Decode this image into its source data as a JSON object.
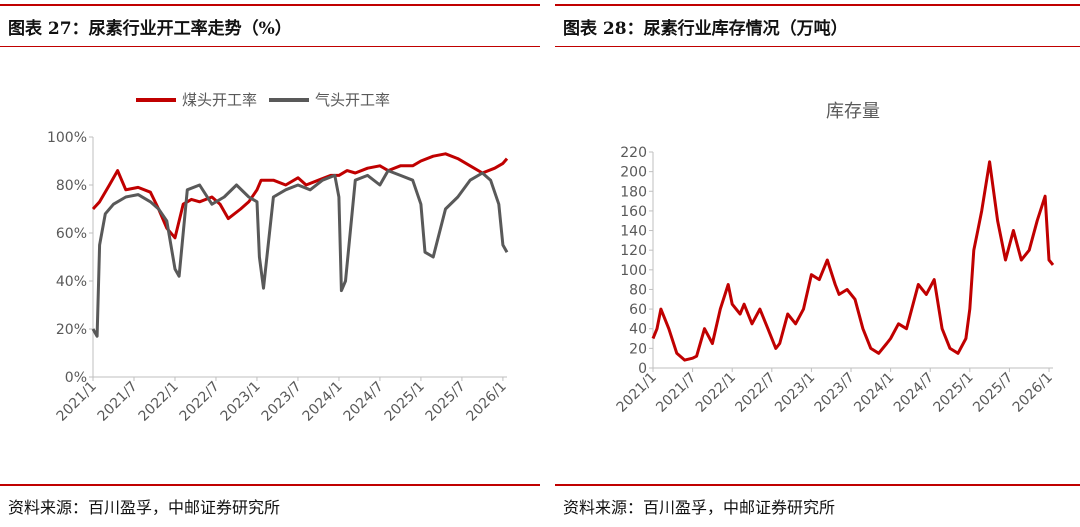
{
  "left": {
    "title": "图表 27：尿素行业开工率走势（%）",
    "source": "资料来源：百川盈孚，中邮证券研究所"
  },
  "right": {
    "title": "图表 28：尿素行业库存情况（万吨）",
    "source": "资料来源：百川盈孚，中邮证券研究所"
  },
  "colors": {
    "coal": "#c00000",
    "gas": "#595959",
    "rule": "#c00000"
  },
  "chart_data": [
    {
      "type": "line",
      "title": "",
      "x_tick_labels": [
        "2021/1",
        "2021/7",
        "2022/1",
        "2022/7",
        "2023/1",
        "2023/7",
        "2024/1",
        "2024/7",
        "2025/1",
        "2025/7",
        "2026/1"
      ],
      "y_tick_labels": [
        "0%",
        "20%",
        "40%",
        "60%",
        "80%",
        "100%"
      ],
      "ylim": [
        0,
        100
      ],
      "legend_position": "top",
      "series": [
        {
          "name": "煤头开工率",
          "color": "#c00000",
          "x": [
            2021.0,
            2021.08,
            2021.2,
            2021.3,
            2021.4,
            2021.55,
            2021.7,
            2021.8,
            2021.9,
            2022.0,
            2022.1,
            2022.2,
            2022.3,
            2022.45,
            2022.55,
            2022.65,
            2022.8,
            2022.9,
            2023.0,
            2023.05,
            2023.2,
            2023.35,
            2023.5,
            2023.6,
            2023.75,
            2023.9,
            2024.0,
            2024.1,
            2024.2,
            2024.35,
            2024.5,
            2024.6,
            2024.75,
            2024.9,
            2025.0,
            2025.15,
            2025.3,
            2025.45,
            2025.6,
            2025.75,
            2025.9,
            2026.0,
            2026.05
          ],
          "values": [
            70,
            73,
            80,
            86,
            78,
            79,
            77,
            70,
            62,
            58,
            72,
            74,
            73,
            75,
            72,
            66,
            70,
            73,
            78,
            82,
            82,
            80,
            83,
            80,
            82,
            84,
            84,
            86,
            85,
            87,
            88,
            86,
            88,
            88,
            90,
            92,
            93,
            91,
            88,
            85,
            87,
            89,
            91
          ]
        },
        {
          "name": "气头开工率",
          "color": "#595959",
          "x": [
            2021.0,
            2021.05,
            2021.08,
            2021.15,
            2021.25,
            2021.4,
            2021.55,
            2021.7,
            2021.8,
            2021.9,
            2022.0,
            2022.05,
            2022.15,
            2022.3,
            2022.45,
            2022.6,
            2022.75,
            2022.9,
            2023.0,
            2023.03,
            2023.08,
            2023.2,
            2023.35,
            2023.5,
            2023.65,
            2023.8,
            2023.95,
            2024.0,
            2024.03,
            2024.08,
            2024.2,
            2024.35,
            2024.5,
            2024.6,
            2024.75,
            2024.9,
            2025.0,
            2025.05,
            2025.15,
            2025.3,
            2025.45,
            2025.6,
            2025.75,
            2025.85,
            2025.95,
            2026.0,
            2026.05
          ],
          "values": [
            20,
            17,
            55,
            68,
            72,
            75,
            76,
            73,
            70,
            65,
            45,
            42,
            78,
            80,
            72,
            75,
            80,
            75,
            73,
            50,
            37,
            75,
            78,
            80,
            78,
            82,
            84,
            75,
            36,
            40,
            82,
            84,
            80,
            86,
            84,
            82,
            72,
            52,
            50,
            70,
            75,
            82,
            85,
            82,
            72,
            55,
            52
          ]
        }
      ]
    },
    {
      "type": "line",
      "title": "库存量",
      "x_tick_labels": [
        "2021/1",
        "2021/7",
        "2022/1",
        "2022/7",
        "2023/1",
        "2023/7",
        "2024/1",
        "2024/7",
        "2025/1",
        "2025/7",
        "2026/1"
      ],
      "y_tick_labels": [
        "0",
        "20",
        "40",
        "60",
        "80",
        "100",
        "120",
        "140",
        "160",
        "180",
        "200",
        "220"
      ],
      "ylim": [
        0,
        220
      ],
      "series": [
        {
          "name": "库存量",
          "color": "#c00000",
          "x": [
            2021.0,
            2021.05,
            2021.1,
            2021.2,
            2021.3,
            2021.4,
            2021.5,
            2021.55,
            2021.65,
            2021.75,
            2021.85,
            2021.95,
            2022.0,
            2022.1,
            2022.15,
            2022.25,
            2022.35,
            2022.45,
            2022.55,
            2022.6,
            2022.7,
            2022.8,
            2022.9,
            2023.0,
            2023.1,
            2023.2,
            2023.3,
            2023.35,
            2023.45,
            2023.55,
            2023.65,
            2023.75,
            2023.85,
            2023.95,
            2024.0,
            2024.1,
            2024.2,
            2024.35,
            2024.45,
            2024.55,
            2024.65,
            2024.75,
            2024.85,
            2024.95,
            2025.0,
            2025.05,
            2025.1,
            2025.15,
            2025.25,
            2025.35,
            2025.45,
            2025.55,
            2025.65,
            2025.75,
            2025.85,
            2025.95,
            2026.0,
            2026.05
          ],
          "values": [
            30,
            40,
            60,
            40,
            15,
            8,
            10,
            12,
            40,
            25,
            60,
            85,
            65,
            55,
            65,
            45,
            60,
            40,
            20,
            25,
            55,
            45,
            60,
            95,
            90,
            110,
            85,
            75,
            80,
            70,
            40,
            20,
            15,
            25,
            30,
            45,
            40,
            85,
            75,
            90,
            40,
            20,
            15,
            30,
            60,
            120,
            140,
            160,
            210,
            150,
            110,
            140,
            110,
            120,
            150,
            175,
            110,
            105
          ]
        }
      ]
    }
  ]
}
